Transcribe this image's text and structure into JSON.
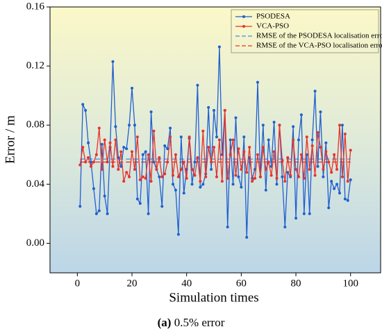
{
  "chart_data": {
    "type": "line",
    "xlabel": "Simulation times",
    "ylabel": "Error / m",
    "caption": {
      "label": "(a)",
      "text": "0.5% error"
    },
    "x": [
      1,
      2,
      3,
      4,
      5,
      6,
      7,
      8,
      9,
      10,
      11,
      12,
      13,
      14,
      15,
      16,
      17,
      18,
      19,
      20,
      21,
      22,
      23,
      24,
      25,
      26,
      27,
      28,
      29,
      30,
      31,
      32,
      33,
      34,
      35,
      36,
      37,
      38,
      39,
      40,
      41,
      42,
      43,
      44,
      45,
      46,
      47,
      48,
      49,
      50,
      51,
      52,
      53,
      54,
      55,
      56,
      57,
      58,
      59,
      60,
      61,
      62,
      63,
      64,
      65,
      66,
      67,
      68,
      69,
      70,
      71,
      72,
      73,
      74,
      75,
      76,
      77,
      78,
      79,
      80,
      81,
      82,
      83,
      84,
      85,
      86,
      87,
      88,
      89,
      90,
      91,
      92,
      93,
      94,
      95,
      96,
      97,
      98,
      99,
      100
    ],
    "series": [
      {
        "name": "PSODESA",
        "color": "#1f5fd0",
        "values": [
          0.025,
          0.094,
          0.09,
          0.068,
          0.055,
          0.037,
          0.02,
          0.022,
          0.067,
          0.032,
          0.02,
          0.065,
          0.123,
          0.079,
          0.058,
          0.052,
          0.065,
          0.064,
          0.08,
          0.105,
          0.08,
          0.03,
          0.027,
          0.06,
          0.062,
          0.02,
          0.089,
          0.055,
          0.05,
          0.045,
          0.025,
          0.066,
          0.064,
          0.078,
          0.04,
          0.036,
          0.006,
          0.072,
          0.034,
          0.05,
          0.071,
          0.04,
          0.055,
          0.107,
          0.038,
          0.04,
          0.047,
          0.092,
          0.05,
          0.09,
          0.072,
          0.133,
          0.06,
          0.09,
          0.011,
          0.07,
          0.04,
          0.085,
          0.045,
          0.038,
          0.072,
          0.004,
          0.058,
          0.044,
          0.05,
          0.109,
          0.045,
          0.08,
          0.036,
          0.07,
          0.052,
          0.082,
          0.04,
          0.08,
          0.045,
          0.011,
          0.048,
          0.045,
          0.079,
          0.017,
          0.07,
          0.087,
          0.02,
          0.06,
          0.02,
          0.07,
          0.103,
          0.052,
          0.089,
          0.045,
          0.068,
          0.024,
          0.042,
          0.037,
          0.04,
          0.034,
          0.08,
          0.03,
          0.029,
          0.043
        ]
      },
      {
        "name": "VCA-PSO",
        "color": "#e8322b",
        "values": [
          0.053,
          0.065,
          0.055,
          0.058,
          0.052,
          0.055,
          0.06,
          0.078,
          0.05,
          0.07,
          0.055,
          0.068,
          0.052,
          0.07,
          0.05,
          0.062,
          0.042,
          0.048,
          0.045,
          0.062,
          0.05,
          0.072,
          0.043,
          0.045,
          0.044,
          0.06,
          0.042,
          0.076,
          0.05,
          0.058,
          0.045,
          0.047,
          0.055,
          0.072,
          0.046,
          0.06,
          0.045,
          0.05,
          0.055,
          0.044,
          0.072,
          0.05,
          0.046,
          0.058,
          0.042,
          0.076,
          0.045,
          0.065,
          0.055,
          0.065,
          0.045,
          0.07,
          0.042,
          0.09,
          0.044,
          0.06,
          0.07,
          0.046,
          0.064,
          0.05,
          0.062,
          0.048,
          0.065,
          0.042,
          0.044,
          0.06,
          0.045,
          0.065,
          0.05,
          0.055,
          0.046,
          0.062,
          0.044,
          0.08,
          0.056,
          0.042,
          0.058,
          0.046,
          0.07,
          0.05,
          0.045,
          0.06,
          0.044,
          0.072,
          0.05,
          0.066,
          0.046,
          0.075,
          0.065,
          0.05,
          0.062,
          0.055,
          0.048,
          0.06,
          0.05,
          0.08,
          0.045,
          0.074,
          0.042,
          0.063
        ]
      }
    ],
    "rmse": [
      {
        "name": "RMSE of the PSODESA localisation error",
        "color": "#3a8ee6",
        "value": 0.057
      },
      {
        "name": "RMSE of the VCA-PSO localisation error",
        "color": "#e8322b",
        "value": 0.055
      }
    ],
    "xlim": [
      -10,
      111
    ],
    "ylim": [
      -0.02,
      0.16
    ],
    "xticks": [
      0,
      20,
      40,
      60,
      80,
      100
    ],
    "yticks": [
      {
        "value": 0,
        "label": "0.00"
      },
      {
        "value": 0.04,
        "label": "0.04"
      },
      {
        "value": 0.08,
        "label": "0.08"
      },
      {
        "value": 0.12,
        "label": "0.12"
      },
      {
        "value": 0.16,
        "label": "0.16"
      }
    ],
    "legend": "upper right"
  }
}
